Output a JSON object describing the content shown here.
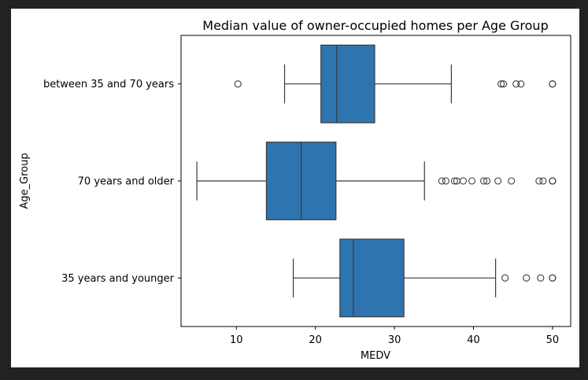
{
  "chart_data": {
    "type": "boxplot",
    "orientation": "horizontal",
    "title": "Median value of owner-occupied homes per Age Group",
    "xlabel": "MEDV",
    "ylabel": "Age_Group",
    "xlim": [
      3,
      52.3
    ],
    "xticks": [
      10,
      20,
      30,
      40,
      50
    ],
    "grid": false,
    "box_color": "#2e75b0",
    "line_color": "#3a3a3a",
    "categories": [
      "between 35 and 70 years",
      "70 years and older",
      "35 years and younger"
    ],
    "boxes": [
      {
        "category": "between 35 and 70 years",
        "whisker_low": 16.1,
        "q1": 20.7,
        "median": 22.7,
        "q3": 27.5,
        "whisker_high": 37.2,
        "outliers": [
          10.2,
          43.5,
          43.8,
          45.4,
          46.0,
          50.0,
          50.0
        ]
      },
      {
        "category": "70 years and older",
        "whisker_low": 5.0,
        "q1": 13.8,
        "median": 18.2,
        "q3": 22.6,
        "whisker_high": 33.8,
        "outliers": [
          36.0,
          36.5,
          37.6,
          37.9,
          38.7,
          39.8,
          41.3,
          41.7,
          43.1,
          44.8,
          48.3,
          48.8,
          50.0,
          50.0,
          50.0
        ]
      },
      {
        "category": "35 years and younger",
        "whisker_low": 17.2,
        "q1": 23.1,
        "median": 24.8,
        "q3": 31.2,
        "whisker_high": 42.8,
        "outliers": [
          44.0,
          46.7,
          48.5,
          50.0,
          50.0
        ]
      }
    ]
  }
}
